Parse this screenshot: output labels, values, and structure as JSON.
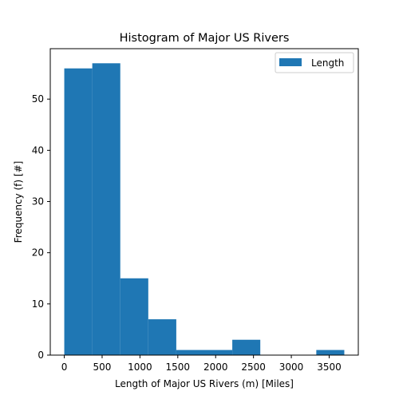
{
  "chart_data": {
    "type": "bar",
    "title": "Histogram of Major US Rivers",
    "xlabel": "Length of Major US Rivers (m) [Miles]",
    "ylabel": "Frequency (f) [#]",
    "bins": [
      {
        "x0": 0,
        "x1": 370,
        "count": 56
      },
      {
        "x0": 370,
        "x1": 740,
        "count": 57
      },
      {
        "x0": 740,
        "x1": 1110,
        "count": 15
      },
      {
        "x0": 1110,
        "x1": 1480,
        "count": 7
      },
      {
        "x0": 1480,
        "x1": 1850,
        "count": 1
      },
      {
        "x0": 1850,
        "x1": 2220,
        "count": 1
      },
      {
        "x0": 2220,
        "x1": 2590,
        "count": 3
      },
      {
        "x0": 2590,
        "x1": 2960,
        "count": 0
      },
      {
        "x0": 2960,
        "x1": 3330,
        "count": 0
      },
      {
        "x0": 3330,
        "x1": 3700,
        "count": 1
      }
    ],
    "xlim": [
      -185,
      3885
    ],
    "ylim": [
      0,
      59.85
    ],
    "xticks": [
      0,
      500,
      1000,
      1500,
      2000,
      2500,
      3000,
      3500
    ],
    "yticks": [
      0,
      10,
      20,
      30,
      40,
      50
    ],
    "legend": {
      "label": "Length",
      "placement": "top-right"
    },
    "bar_color": "#1f77b4",
    "grid": false
  }
}
